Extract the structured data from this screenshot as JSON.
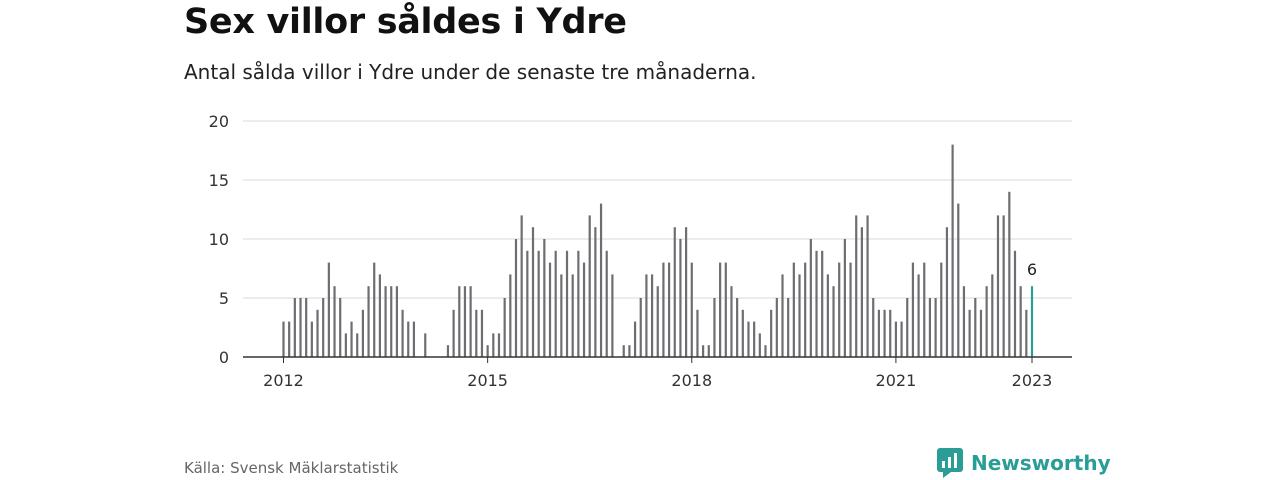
{
  "header": {
    "title": "Sex villor såldes i Ydre",
    "subtitle": "Antal sålda villor i Ydre under de senaste tre månaderna."
  },
  "footer": {
    "source": "Källa: Svensk Mäklarstatistik",
    "brand": "Newsworthy"
  },
  "colors": {
    "bar": "#6e6e72",
    "highlight": "#2a9d97",
    "grid": "#d9d9d9",
    "axis": "#333333"
  },
  "chart_data": {
    "type": "bar",
    "title": "Sex villor såldes i Ydre",
    "subtitle": "Antal sålda villor i Ydre under de senaste tre månaderna.",
    "ylim": [
      0,
      20
    ],
    "yticks": [
      0,
      5,
      10,
      15,
      20
    ],
    "xticks": [
      "2012",
      "2015",
      "2018",
      "2021",
      "2023"
    ],
    "grid": true,
    "highlight_label": "6",
    "series": [
      {
        "values": [
          3,
          3,
          5,
          5,
          5,
          3,
          4,
          5,
          8,
          6,
          5,
          2,
          3,
          2,
          4,
          6,
          8,
          7,
          6,
          6,
          6,
          4,
          3,
          3,
          null,
          2,
          null,
          null,
          null,
          1,
          4,
          6,
          6,
          6,
          4,
          4,
          1,
          2,
          2,
          5,
          7,
          10,
          12,
          9,
          11,
          9,
          10,
          8,
          9,
          7,
          9,
          7,
          9,
          8,
          12,
          11,
          13,
          9,
          7,
          null,
          1,
          1,
          3,
          5,
          7,
          7,
          6,
          8,
          8,
          11,
          10,
          11,
          8,
          4,
          1,
          1,
          5,
          8,
          8,
          6,
          5,
          4,
          3,
          3,
          2,
          1,
          4,
          5,
          7,
          5,
          8,
          7,
          8,
          10,
          9,
          9,
          7,
          6,
          8,
          10,
          8,
          12,
          11,
          12,
          5,
          4,
          4,
          4,
          3,
          3,
          5,
          8,
          7,
          8,
          5,
          5,
          8,
          11,
          18,
          13,
          6,
          4,
          5,
          4,
          6,
          7,
          12,
          12,
          14,
          9,
          6,
          4,
          6
        ]
      }
    ]
  }
}
